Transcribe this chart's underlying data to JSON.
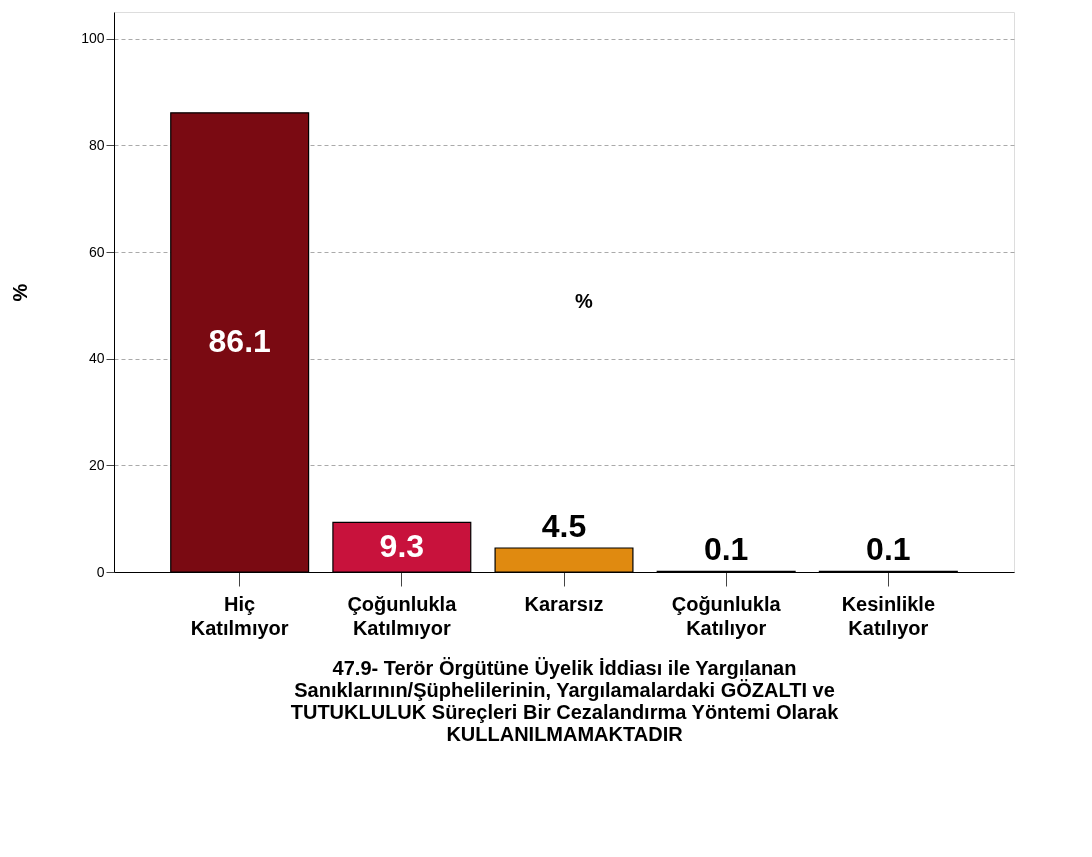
{
  "chart_data": {
    "type": "bar",
    "categories": [
      "Hiç Katılmıyor",
      "Çoğunlukla Katılmıyor",
      "Kararsız",
      "Çoğunlukla Katılıyor",
      "Kesinlikle Katılıyor"
    ],
    "values": [
      86.1,
      9.3,
      4.5,
      0.1,
      0.1
    ],
    "colors": [
      "#7a0a12",
      "#c8123c",
      "#e08a10",
      "#7a0a12",
      "#7a0a12"
    ],
    "data_labels": true,
    "xlabel": "47.9- Terör Örgütüne Üyelik İddiası ile Yargılanan Sanıklarının/Şüphelilerinin, Yargılamalardaki GÖZALTI ve TUTUKLULUK Süreçleri Bir Cezalandırma Yöntemi Olarak KULLANILMAMAKTADIR",
    "ylabel": "%",
    "annotations": [
      "%"
    ],
    "ylim": [
      0,
      105
    ],
    "yticks": [
      0,
      20,
      40,
      60,
      80,
      100
    ],
    "grid": "y"
  }
}
